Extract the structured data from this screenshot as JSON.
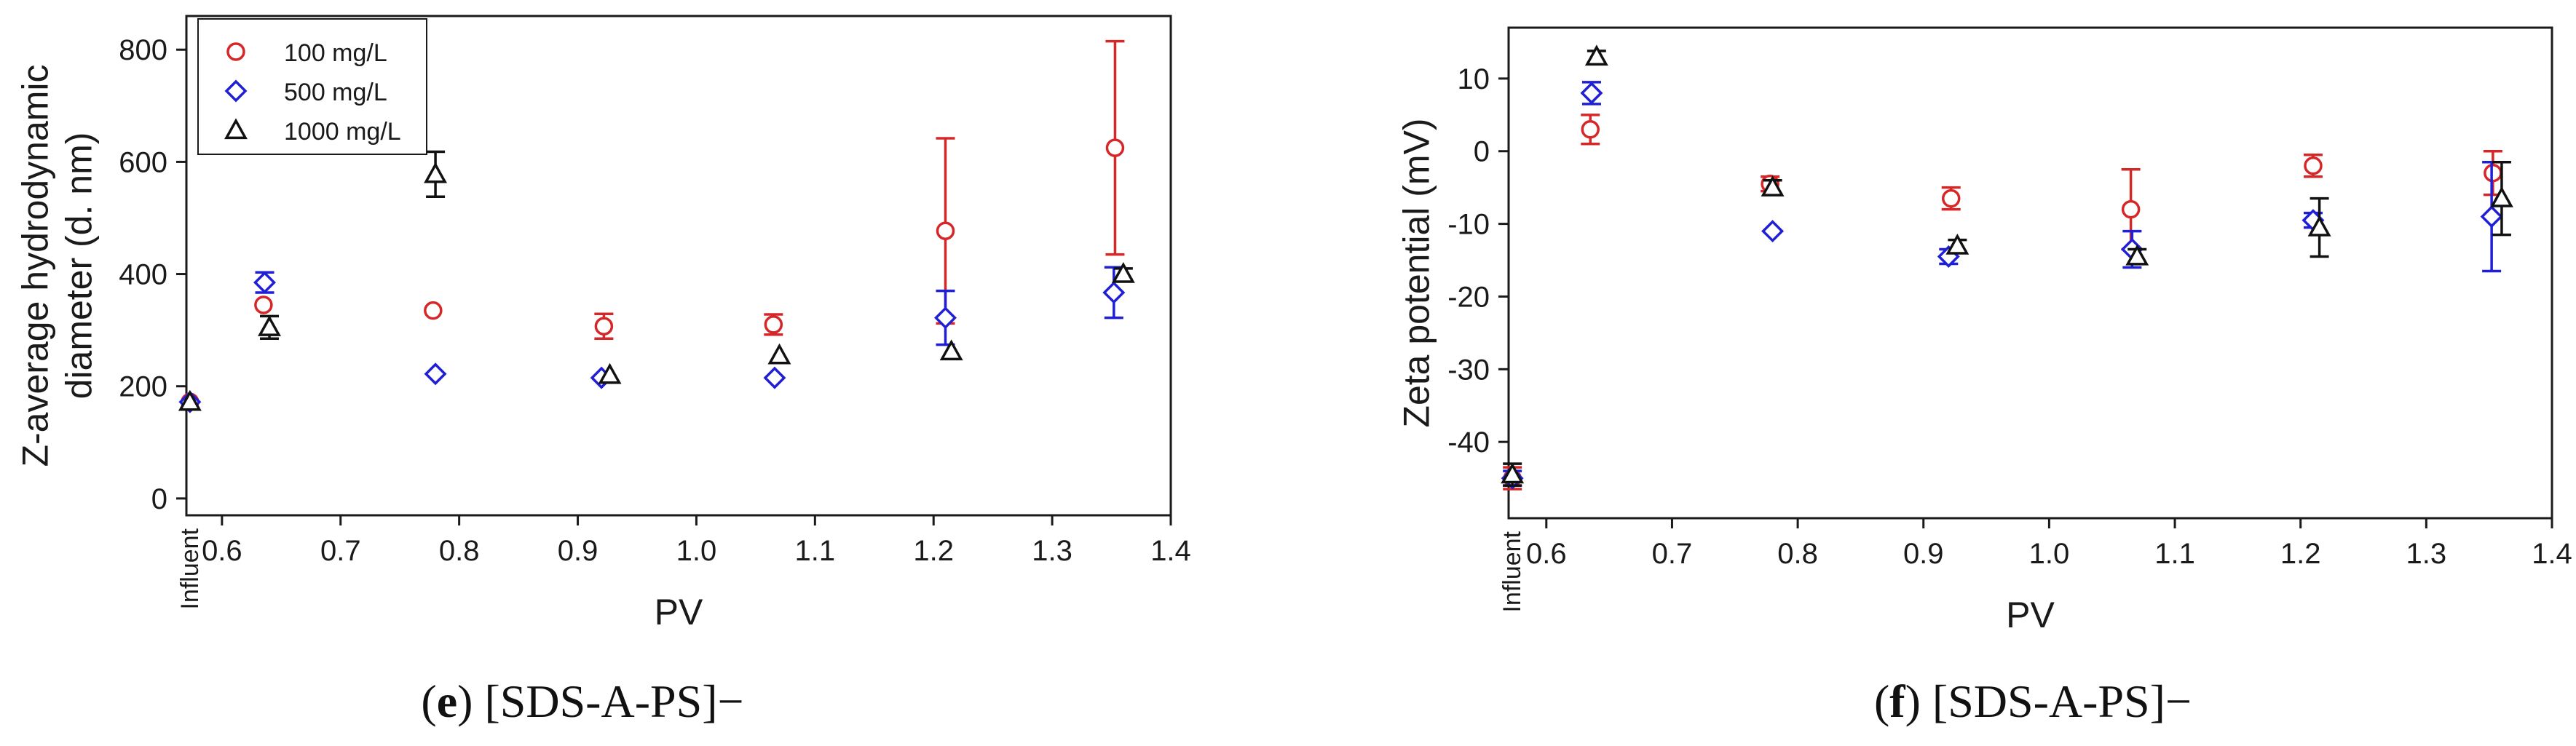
{
  "chart_data": [
    {
      "type": "scatter",
      "panel_id": "e",
      "caption_letter": "e",
      "caption_text": " [SDS-A-PS]−",
      "xlabel": "PV",
      "ylabel_lines": [
        "Z-average hydrodynamic",
        "diameter (d. nm)"
      ],
      "xlim": [
        0.57,
        1.4
      ],
      "ylim": [
        -30,
        860
      ],
      "xticks": [
        0.6,
        0.7,
        0.8,
        0.9,
        1.0,
        1.1,
        1.2,
        1.3,
        1.4
      ],
      "xtick_labels": [
        "0.6",
        "0.7",
        "0.8",
        "0.9",
        "1.0",
        "1.1",
        "1.2",
        "1.3",
        "1.4"
      ],
      "yticks": [
        0,
        200,
        400,
        600,
        800
      ],
      "ytick_labels": [
        "0",
        "200",
        "400",
        "600",
        "800"
      ],
      "influent_label": "Influent",
      "grid": false,
      "legend": {
        "position": "top-left",
        "entries": [
          "100 mg/L",
          "500 mg/L",
          "1000 mg/L"
        ]
      },
      "series": [
        {
          "name": "100 mg/L",
          "marker": "circle",
          "color": "#d62728",
          "points": [
            {
              "x": 0.573,
              "y": 172,
              "err": 0
            },
            {
              "x": 0.635,
              "y": 345,
              "err": 0
            },
            {
              "x": 0.778,
              "y": 335,
              "err": 0
            },
            {
              "x": 0.922,
              "y": 307,
              "err": 22
            },
            {
              "x": 1.065,
              "y": 310,
              "err": 18
            },
            {
              "x": 1.21,
              "y": 477,
              "err": 165
            },
            {
              "x": 1.353,
              "y": 625,
              "err": 190
            }
          ]
        },
        {
          "name": "500 mg/L",
          "marker": "diamond",
          "color": "#1f1fd6",
          "points": [
            {
              "x": 0.573,
              "y": 172,
              "err": 0
            },
            {
              "x": 0.636,
              "y": 385,
              "err": 18
            },
            {
              "x": 0.78,
              "y": 222,
              "err": 0
            },
            {
              "x": 0.92,
              "y": 215,
              "err": 0
            },
            {
              "x": 1.066,
              "y": 215,
              "err": 0
            },
            {
              "x": 1.21,
              "y": 322,
              "err": 48
            },
            {
              "x": 1.352,
              "y": 367,
              "err": 45
            }
          ]
        },
        {
          "name": "1000 mg/L",
          "marker": "triangle",
          "color": "#111111",
          "points": [
            {
              "x": 0.573,
              "y": 172,
              "err": 0
            },
            {
              "x": 0.64,
              "y": 305,
              "err": 20
            },
            {
              "x": 0.78,
              "y": 578,
              "err": 40
            },
            {
              "x": 0.927,
              "y": 220,
              "err": 0
            },
            {
              "x": 1.07,
              "y": 255,
              "err": 0
            },
            {
              "x": 1.215,
              "y": 262,
              "err": 0
            },
            {
              "x": 1.36,
              "y": 400,
              "err": 10
            }
          ]
        }
      ]
    },
    {
      "type": "scatter",
      "panel_id": "f",
      "caption_letter": "f",
      "caption_text": " [SDS-A-PS]−",
      "xlabel": "PV",
      "ylabel_lines": [
        "Zeta potential (mV)"
      ],
      "xlim": [
        0.57,
        1.4
      ],
      "ylim": [
        -50.5,
        17
      ],
      "xticks": [
        0.6,
        0.7,
        0.8,
        0.9,
        1.0,
        1.1,
        1.2,
        1.3,
        1.4
      ],
      "xtick_labels": [
        "0.6",
        "0.7",
        "0.8",
        "0.9",
        "1.0",
        "1.1",
        "1.2",
        "1.3",
        "1.4"
      ],
      "yticks": [
        -40,
        -30,
        -20,
        -10,
        0,
        10
      ],
      "ytick_labels": [
        "-40",
        "-30",
        "-20",
        "-10",
        "0",
        "10"
      ],
      "influent_label": "Influent",
      "grid": false,
      "legend": null,
      "series": [
        {
          "name": "100 mg/L",
          "marker": "circle",
          "color": "#d62728",
          "points": [
            {
              "x": 0.573,
              "y": -45,
              "err": 1.5
            },
            {
              "x": 0.635,
              "y": 3,
              "err": 2
            },
            {
              "x": 0.778,
              "y": -4.5,
              "err": 1
            },
            {
              "x": 0.922,
              "y": -6.5,
              "err": 1.5
            },
            {
              "x": 1.065,
              "y": -8,
              "err": 5.5
            },
            {
              "x": 1.21,
              "y": -2,
              "err": 1.5
            },
            {
              "x": 1.353,
              "y": -3,
              "err": 3
            }
          ]
        },
        {
          "name": "500 mg/L",
          "marker": "diamond",
          "color": "#1f1fd6",
          "points": [
            {
              "x": 0.573,
              "y": -45,
              "err": 1
            },
            {
              "x": 0.636,
              "y": 8,
              "err": 1.5
            },
            {
              "x": 0.78,
              "y": -11,
              "err": 0
            },
            {
              "x": 0.92,
              "y": -14.5,
              "err": 1
            },
            {
              "x": 1.066,
              "y": -13.5,
              "err": 2.5
            },
            {
              "x": 1.21,
              "y": -9.5,
              "err": 1
            },
            {
              "x": 1.352,
              "y": -9,
              "err": 7.5
            }
          ]
        },
        {
          "name": "1000 mg/L",
          "marker": "triangle",
          "color": "#111111",
          "points": [
            {
              "x": 0.573,
              "y": -44.5,
              "err": 1.5
            },
            {
              "x": 0.64,
              "y": 13,
              "err": 0.8
            },
            {
              "x": 0.78,
              "y": -5,
              "err": 1
            },
            {
              "x": 0.927,
              "y": -13,
              "err": 0.8
            },
            {
              "x": 1.07,
              "y": -14.5,
              "err": 1
            },
            {
              "x": 1.215,
              "y": -10.5,
              "err": 4
            },
            {
              "x": 1.36,
              "y": -6.5,
              "err": 5
            }
          ]
        }
      ]
    }
  ]
}
